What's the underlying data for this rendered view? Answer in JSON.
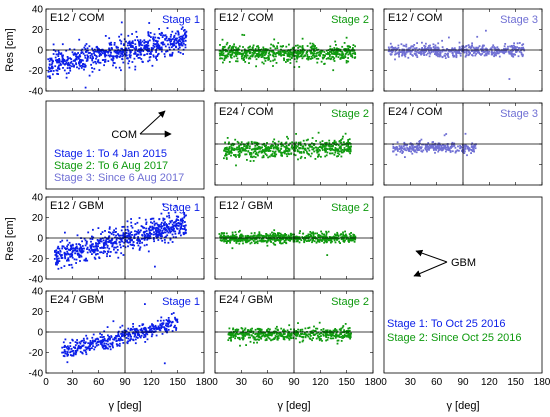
{
  "colors": {
    "stage1": "#0b1ee8",
    "stage2": "#0f9a0f",
    "stage3": "#7070d4"
  },
  "axes": {
    "xlabel": "γ [deg]",
    "ylabel": "Res [cm]",
    "xlim": [
      0,
      180
    ],
    "ylim": [
      -40,
      40
    ],
    "xticks": [
      "0",
      "30",
      "60",
      "90",
      "120",
      "150",
      "180"
    ],
    "yticks": [
      "40",
      "20",
      "0",
      "-20",
      "-40"
    ]
  },
  "chart_data": {
    "type": "scatter",
    "panels": [
      {
        "row": 0,
        "col": 0,
        "title": "E12 / COM",
        "stage": "Stage 1",
        "series": "stage1",
        "xmin": 2,
        "xmax": 160,
        "y0": -15,
        "slope": 0.16,
        "spread": 6,
        "n": 700
      },
      {
        "row": 0,
        "col": 1,
        "title": "E12 / COM",
        "stage": "Stage 2",
        "series": "stage2",
        "xmin": 5,
        "xmax": 160,
        "y0": -3,
        "slope": 0.0,
        "spread": 4,
        "n": 650
      },
      {
        "row": 0,
        "col": 2,
        "title": "E12 / COM",
        "stage": "Stage 3",
        "series": "stage3",
        "xmin": 5,
        "xmax": 160,
        "y0": -1,
        "slope": 0.0,
        "spread": 3,
        "n": 550
      },
      {
        "row": 1,
        "col": 1,
        "title": "E24 / COM",
        "stage": "Stage 2",
        "series": "stage2",
        "xmin": 10,
        "xmax": 155,
        "y0": -6,
        "slope": 0.02,
        "spread": 4,
        "n": 550
      },
      {
        "row": 1,
        "col": 2,
        "title": "E24 / COM",
        "stage": "Stage 3",
        "series": "stage3",
        "xmin": 10,
        "xmax": 105,
        "y0": -4,
        "slope": 0.01,
        "spread": 2.5,
        "n": 300
      },
      {
        "row": 2,
        "col": 0,
        "title": "E12 / GBM",
        "stage": "Stage 1",
        "series": "stage1",
        "xmin": 10,
        "xmax": 160,
        "y0": -17,
        "slope": 0.2,
        "spread": 6,
        "n": 700
      },
      {
        "row": 2,
        "col": 1,
        "title": "E12 / GBM",
        "stage": "Stage 2",
        "series": "stage2",
        "xmin": 5,
        "xmax": 160,
        "y0": 0,
        "slope": 0.0,
        "spread": 2.5,
        "n": 650
      },
      {
        "row": 3,
        "col": 0,
        "title": "E24 / GBM",
        "stage": "Stage 1",
        "series": "stage1",
        "xmin": 18,
        "xmax": 150,
        "y0": -20,
        "slope": 0.22,
        "spread": 4,
        "n": 450
      },
      {
        "row": 3,
        "col": 1,
        "title": "E24 / GBM",
        "stage": "Stage 2",
        "series": "stage2",
        "xmin": 15,
        "xmax": 155,
        "y0": -2,
        "slope": 0.0,
        "spread": 3,
        "n": 500
      }
    ]
  },
  "legend_com": {
    "label": "COM",
    "lines": [
      {
        "text": "Stage 1: To 4 Jan 2015",
        "series": "stage1"
      },
      {
        "text": "Stage 2: To 6 Aug 2017",
        "series": "stage2"
      },
      {
        "text": "Stage 3: Since 6 Aug 2017",
        "series": "stage3"
      }
    ]
  },
  "legend_gbm": {
    "label": "GBM",
    "lines": [
      {
        "text": "Stage 1: To Oct 25 2016",
        "series": "stage1"
      },
      {
        "text": "Stage 2: Since Oct 25 2016",
        "series": "stage2"
      }
    ]
  }
}
